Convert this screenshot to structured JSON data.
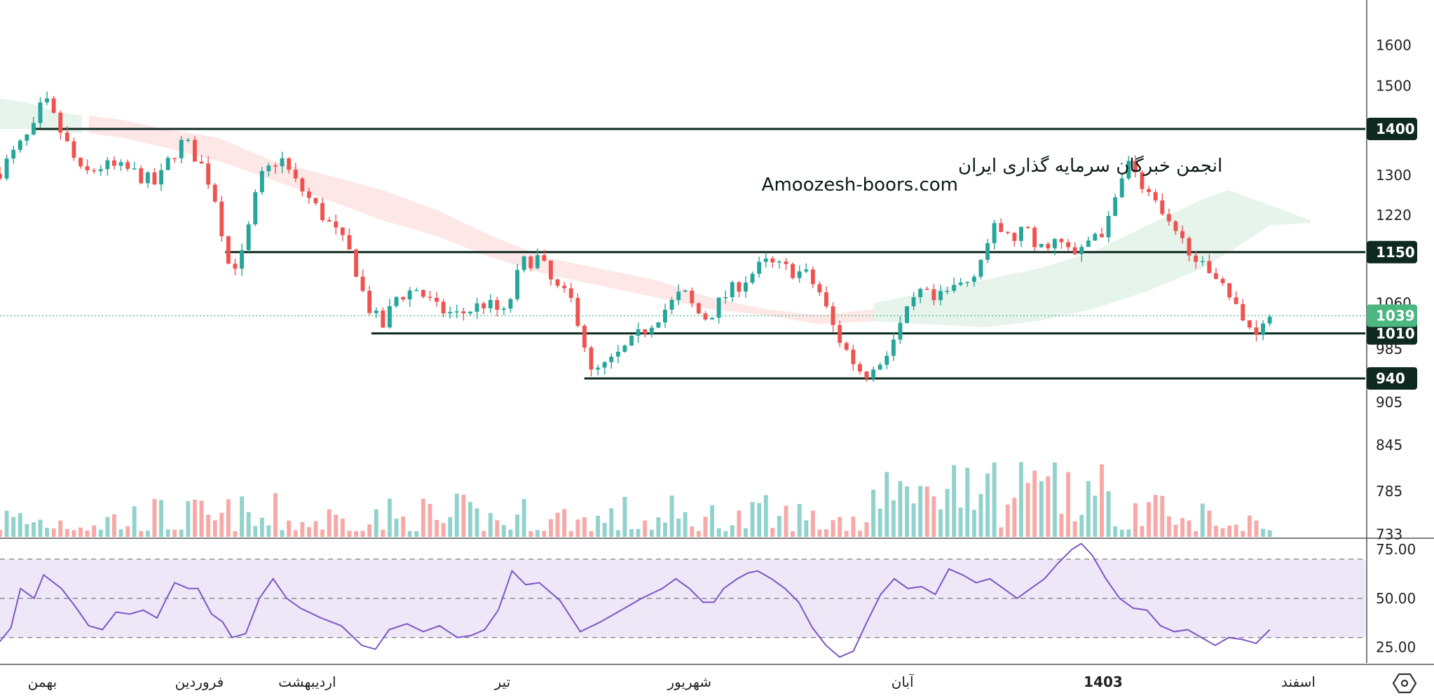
{
  "watermark": {
    "line1": "انجمن خبرگان سرمایه گذاری ایران",
    "line2": "Amoozesh-boors.com"
  },
  "colors": {
    "up": "#26a69a",
    "down": "#ef5350",
    "level": "#0e2a20",
    "cloud_bear": "#fde3e3",
    "cloud_bull": "#e4f3ea",
    "rsi_line": "#7e57c2",
    "rsi_band": "#ede7f8",
    "last_price": "#4cb781"
  },
  "chart_data": {
    "type": "candlestick",
    "price_scale": {
      "ticks": [
        "1600",
        "1500",
        "1300",
        "1220",
        "1060",
        "985",
        "905",
        "845",
        "785",
        "733"
      ],
      "scale": "log",
      "range": [
        730,
        1720
      ]
    },
    "levels": [
      {
        "value": 1400,
        "label": "1400",
        "x_start": 0.025
      },
      {
        "value": 1150,
        "label": "1150",
        "x_start": 0.165
      },
      {
        "value": 1010,
        "label": "1010",
        "x_start": 0.272
      },
      {
        "value": 940,
        "label": "940",
        "x_start": 0.428
      }
    ],
    "last_price": {
      "value": 1039,
      "label": "1039"
    },
    "months": [
      {
        "label": "بهمن",
        "x": 0.031
      },
      {
        "label": "فروردین",
        "x": 0.146
      },
      {
        "label": "اردیبهشت",
        "x": 0.225
      },
      {
        "label": "تیر",
        "x": 0.368
      },
      {
        "label": "شهریور",
        "x": 0.505
      },
      {
        "label": "آبان",
        "x": 0.661
      },
      {
        "label": "1403",
        "x": 0.808,
        "bold": true
      },
      {
        "label": "اسفند",
        "x": 0.951
      }
    ],
    "close_anchors": [
      [
        0,
        1310
      ],
      [
        0.025,
        1400
      ],
      [
        0.032,
        1470
      ],
      [
        0.045,
        1390
      ],
      [
        0.06,
        1300
      ],
      [
        0.075,
        1320
      ],
      [
        0.095,
        1310
      ],
      [
        0.115,
        1280
      ],
      [
        0.125,
        1340
      ],
      [
        0.135,
        1375
      ],
      [
        0.15,
        1310
      ],
      [
        0.158,
        1250
      ],
      [
        0.168,
        1120
      ],
      [
        0.178,
        1145
      ],
      [
        0.19,
        1290
      ],
      [
        0.205,
        1340
      ],
      [
        0.215,
        1290
      ],
      [
        0.23,
        1240
      ],
      [
        0.248,
        1180
      ],
      [
        0.258,
        1140
      ],
      [
        0.268,
        1060
      ],
      [
        0.28,
        1020
      ],
      [
        0.29,
        1070
      ],
      [
        0.305,
        1085
      ],
      [
        0.32,
        1050
      ],
      [
        0.335,
        1040
      ],
      [
        0.355,
        1060
      ],
      [
        0.37,
        1040
      ],
      [
        0.382,
        1130
      ],
      [
        0.395,
        1140
      ],
      [
        0.405,
        1090
      ],
      [
        0.42,
        1060
      ],
      [
        0.428,
        995
      ],
      [
        0.432,
        945
      ],
      [
        0.445,
        960
      ],
      [
        0.465,
        1000
      ],
      [
        0.48,
        1035
      ],
      [
        0.492,
        1060
      ],
      [
        0.5,
        1080
      ],
      [
        0.51,
        1045
      ],
      [
        0.518,
        1035
      ],
      [
        0.53,
        1070
      ],
      [
        0.545,
        1100
      ],
      [
        0.56,
        1130
      ],
      [
        0.575,
        1120
      ],
      [
        0.59,
        1110
      ],
      [
        0.6,
        1080
      ],
      [
        0.612,
        1010
      ],
      [
        0.628,
        955
      ],
      [
        0.638,
        945
      ],
      [
        0.652,
        990
      ],
      [
        0.665,
        1045
      ],
      [
        0.675,
        1080
      ],
      [
        0.685,
        1060
      ],
      [
        0.7,
        1090
      ],
      [
        0.71,
        1100
      ],
      [
        0.72,
        1150
      ],
      [
        0.73,
        1200
      ],
      [
        0.74,
        1170
      ],
      [
        0.75,
        1195
      ],
      [
        0.76,
        1150
      ],
      [
        0.77,
        1175
      ],
      [
        0.79,
        1140
      ],
      [
        0.8,
        1185
      ],
      [
        0.81,
        1190
      ],
      [
        0.818,
        1260
      ],
      [
        0.825,
        1350
      ],
      [
        0.83,
        1305
      ],
      [
        0.84,
        1270
      ],
      [
        0.85,
        1220
      ],
      [
        0.86,
        1180
      ],
      [
        0.875,
        1150
      ],
      [
        0.885,
        1100
      ],
      [
        0.895,
        1110
      ],
      [
        0.9,
        1075
      ],
      [
        0.91,
        1030
      ],
      [
        0.92,
        1015
      ],
      [
        0.925,
        1035
      ],
      [
        0.93,
        1039
      ]
    ],
    "rsi": {
      "levels": [
        70,
        50,
        30
      ],
      "ticks": [
        "75.00",
        "50.00",
        "25.00"
      ],
      "range": [
        17,
        80
      ],
      "points": [
        [
          0,
          28
        ],
        [
          0.008,
          35
        ],
        [
          0.015,
          55
        ],
        [
          0.025,
          50
        ],
        [
          0.032,
          62
        ],
        [
          0.045,
          55
        ],
        [
          0.055,
          46
        ],
        [
          0.065,
          36
        ],
        [
          0.075,
          34
        ],
        [
          0.085,
          43
        ],
        [
          0.095,
          42
        ],
        [
          0.105,
          44
        ],
        [
          0.115,
          40
        ],
        [
          0.122,
          50
        ],
        [
          0.128,
          58
        ],
        [
          0.138,
          55
        ],
        [
          0.145,
          55
        ],
        [
          0.155,
          42
        ],
        [
          0.163,
          38
        ],
        [
          0.17,
          30
        ],
        [
          0.18,
          32
        ],
        [
          0.19,
          50
        ],
        [
          0.2,
          60
        ],
        [
          0.21,
          50
        ],
        [
          0.22,
          45
        ],
        [
          0.235,
          40
        ],
        [
          0.25,
          36
        ],
        [
          0.265,
          26
        ],
        [
          0.275,
          24
        ],
        [
          0.285,
          34
        ],
        [
          0.298,
          37
        ],
        [
          0.31,
          33
        ],
        [
          0.322,
          36
        ],
        [
          0.335,
          30
        ],
        [
          0.345,
          31
        ],
        [
          0.355,
          34
        ],
        [
          0.365,
          44
        ],
        [
          0.375,
          64
        ],
        [
          0.385,
          57
        ],
        [
          0.395,
          58
        ],
        [
          0.41,
          49
        ],
        [
          0.425,
          33
        ],
        [
          0.44,
          38
        ],
        [
          0.455,
          44
        ],
        [
          0.47,
          50
        ],
        [
          0.485,
          55
        ],
        [
          0.495,
          60
        ],
        [
          0.505,
          55
        ],
        [
          0.515,
          48
        ],
        [
          0.523,
          48
        ],
        [
          0.53,
          55
        ],
        [
          0.54,
          60
        ],
        [
          0.548,
          63
        ],
        [
          0.555,
          64
        ],
        [
          0.565,
          60
        ],
        [
          0.575,
          55
        ],
        [
          0.585,
          48
        ],
        [
          0.595,
          35
        ],
        [
          0.605,
          26
        ],
        [
          0.615,
          20
        ],
        [
          0.625,
          23
        ],
        [
          0.635,
          38
        ],
        [
          0.645,
          52
        ],
        [
          0.655,
          60
        ],
        [
          0.665,
          55
        ],
        [
          0.675,
          56
        ],
        [
          0.685,
          52
        ],
        [
          0.695,
          65
        ],
        [
          0.705,
          62
        ],
        [
          0.715,
          58
        ],
        [
          0.725,
          60
        ],
        [
          0.735,
          55
        ],
        [
          0.745,
          50
        ],
        [
          0.755,
          55
        ],
        [
          0.765,
          60
        ],
        [
          0.775,
          68
        ],
        [
          0.785,
          75
        ],
        [
          0.792,
          78
        ],
        [
          0.8,
          72
        ],
        [
          0.81,
          60
        ],
        [
          0.82,
          50
        ],
        [
          0.83,
          45
        ],
        [
          0.84,
          44
        ],
        [
          0.85,
          36
        ],
        [
          0.86,
          33
        ],
        [
          0.87,
          34
        ],
        [
          0.88,
          30
        ],
        [
          0.89,
          26
        ],
        [
          0.9,
          30
        ],
        [
          0.91,
          29
        ],
        [
          0.92,
          27
        ],
        [
          0.93,
          34
        ]
      ]
    }
  }
}
